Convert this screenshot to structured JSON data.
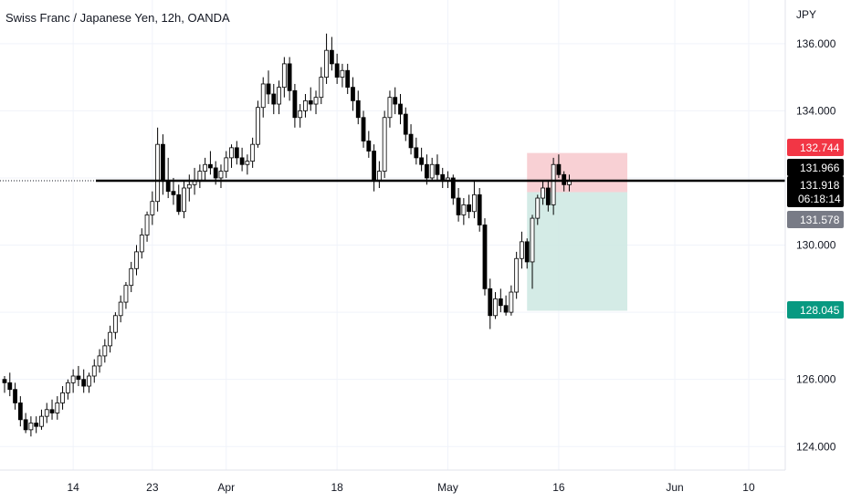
{
  "chart_data": {
    "type": "candlestick",
    "title": "Swiss Franc / Japanese Yen, 12h, OANDA",
    "ylabel": "JPY",
    "ylim": [
      123.3,
      137.3
    ],
    "y_ticks": [
      124,
      126,
      128,
      130,
      132,
      134,
      136
    ],
    "y_tick_labels": [
      "124.000",
      "126.000",
      "128.000",
      "130.000",
      "132.000",
      "134.000",
      "136.000"
    ],
    "x_tick_labels": [
      "14",
      "23",
      "Apr",
      "18",
      "May",
      "16",
      "Jun",
      "10"
    ],
    "x_tick_bar_index": [
      13,
      28,
      42,
      63,
      84,
      105,
      127,
      141
    ],
    "grid": true,
    "candles": [
      [
        126.0,
        126.1,
        125.6,
        125.9
      ],
      [
        125.9,
        126.2,
        125.5,
        125.7
      ],
      [
        125.7,
        125.9,
        125.1,
        125.3
      ],
      [
        125.3,
        125.5,
        124.6,
        124.8
      ],
      [
        124.8,
        125.0,
        124.4,
        124.5
      ],
      [
        124.5,
        124.9,
        124.3,
        124.7
      ],
      [
        124.7,
        124.9,
        124.4,
        124.6
      ],
      [
        124.6,
        125.1,
        124.5,
        124.9
      ],
      [
        124.9,
        125.3,
        124.7,
        125.1
      ],
      [
        125.1,
        125.4,
        124.8,
        125.0
      ],
      [
        125.0,
        125.5,
        124.8,
        125.3
      ],
      [
        125.3,
        125.8,
        125.1,
        125.6
      ],
      [
        125.6,
        126.0,
        125.4,
        125.9
      ],
      [
        125.9,
        126.3,
        125.6,
        126.1
      ],
      [
        126.1,
        126.4,
        125.8,
        126.0
      ],
      [
        126.0,
        126.3,
        125.6,
        125.8
      ],
      [
        125.8,
        126.2,
        125.6,
        126.1
      ],
      [
        126.1,
        126.6,
        125.9,
        126.4
      ],
      [
        126.4,
        126.9,
        126.2,
        126.7
      ],
      [
        126.7,
        127.2,
        126.5,
        127.0
      ],
      [
        127.0,
        127.6,
        126.8,
        127.4
      ],
      [
        127.4,
        128.0,
        127.2,
        127.9
      ],
      [
        127.9,
        128.5,
        127.7,
        128.3
      ],
      [
        128.3,
        128.9,
        128.1,
        128.8
      ],
      [
        128.8,
        129.5,
        128.6,
        129.3
      ],
      [
        129.3,
        130.0,
        129.1,
        129.8
      ],
      [
        129.8,
        130.5,
        129.6,
        130.3
      ],
      [
        130.3,
        131.0,
        130.1,
        130.9
      ],
      [
        130.9,
        131.6,
        130.6,
        131.3
      ],
      [
        131.3,
        133.5,
        131.0,
        133.0
      ],
      [
        133.0,
        133.3,
        131.5,
        131.9
      ],
      [
        131.9,
        132.6,
        131.4,
        131.6
      ],
      [
        131.6,
        132.0,
        131.2,
        131.5
      ],
      [
        131.5,
        131.8,
        130.9,
        131.0
      ],
      [
        131.0,
        131.9,
        130.8,
        131.7
      ],
      [
        131.7,
        132.1,
        131.3,
        131.8
      ],
      [
        131.8,
        132.3,
        131.5,
        131.9
      ],
      [
        131.9,
        132.4,
        131.7,
        132.2
      ],
      [
        132.2,
        132.6,
        131.9,
        132.4
      ],
      [
        132.4,
        132.8,
        132.1,
        132.3
      ],
      [
        132.3,
        132.5,
        131.8,
        132.0
      ],
      [
        132.0,
        132.4,
        131.7,
        132.2
      ],
      [
        132.2,
        132.8,
        132.0,
        132.6
      ],
      [
        132.6,
        133.0,
        132.3,
        132.9
      ],
      [
        132.9,
        133.1,
        132.4,
        132.6
      ],
      [
        132.6,
        132.9,
        132.2,
        132.4
      ],
      [
        132.4,
        132.7,
        132.1,
        132.5
      ],
      [
        132.5,
        133.2,
        132.3,
        133.0
      ],
      [
        133.0,
        134.3,
        132.9,
        134.1
      ],
      [
        134.1,
        135.0,
        133.8,
        134.8
      ],
      [
        134.8,
        135.2,
        134.2,
        134.5
      ],
      [
        134.5,
        134.8,
        133.9,
        134.2
      ],
      [
        134.2,
        134.9,
        133.9,
        134.7
      ],
      [
        134.7,
        135.6,
        134.4,
        135.4
      ],
      [
        135.4,
        135.6,
        134.3,
        134.6
      ],
      [
        134.6,
        134.8,
        133.5,
        133.8
      ],
      [
        133.8,
        134.2,
        133.5,
        134.0
      ],
      [
        134.0,
        134.5,
        133.8,
        134.3
      ],
      [
        134.3,
        134.7,
        134.0,
        134.2
      ],
      [
        134.2,
        134.6,
        133.9,
        134.4
      ],
      [
        134.4,
        135.3,
        134.2,
        135.0
      ],
      [
        135.0,
        136.3,
        134.8,
        135.8
      ],
      [
        135.8,
        136.2,
        135.2,
        135.4
      ],
      [
        135.4,
        135.7,
        134.8,
        135.0
      ],
      [
        135.0,
        135.4,
        134.7,
        135.2
      ],
      [
        135.2,
        135.4,
        134.5,
        134.7
      ],
      [
        134.7,
        135.0,
        134.0,
        134.3
      ],
      [
        134.3,
        134.6,
        133.6,
        133.8
      ],
      [
        133.8,
        134.0,
        132.9,
        133.1
      ],
      [
        133.1,
        133.4,
        132.6,
        132.8
      ],
      [
        132.8,
        133.0,
        131.6,
        131.9
      ],
      [
        131.9,
        132.5,
        131.7,
        132.2
      ],
      [
        132.2,
        134.0,
        132.0,
        133.8
      ],
      [
        133.8,
        134.6,
        133.5,
        134.4
      ],
      [
        134.4,
        134.7,
        133.9,
        134.2
      ],
      [
        134.2,
        134.5,
        133.6,
        133.9
      ],
      [
        133.9,
        134.1,
        133.1,
        133.3
      ],
      [
        133.3,
        133.6,
        132.7,
        132.9
      ],
      [
        132.9,
        133.2,
        132.4,
        132.6
      ],
      [
        132.6,
        132.9,
        132.2,
        132.4
      ],
      [
        132.4,
        132.7,
        131.8,
        132.0
      ],
      [
        132.0,
        132.6,
        131.9,
        132.4
      ],
      [
        132.4,
        132.7,
        131.9,
        132.1
      ],
      [
        132.1,
        132.3,
        131.7,
        131.9
      ],
      [
        131.9,
        132.2,
        131.7,
        132.0
      ],
      [
        132.0,
        132.1,
        131.2,
        131.4
      ],
      [
        131.4,
        131.7,
        130.7,
        130.9
      ],
      [
        130.9,
        131.4,
        130.6,
        131.2
      ],
      [
        131.2,
        131.5,
        130.8,
        131.0
      ],
      [
        131.0,
        131.9,
        130.8,
        131.5
      ],
      [
        131.5,
        131.7,
        130.4,
        130.6
      ],
      [
        130.6,
        130.8,
        128.5,
        128.7
      ],
      [
        128.7,
        129.0,
        127.5,
        127.9
      ],
      [
        127.9,
        128.6,
        127.8,
        128.4
      ],
      [
        128.4,
        128.7,
        128.0,
        128.2
      ],
      [
        128.2,
        128.5,
        127.9,
        128.0
      ],
      [
        128.0,
        128.8,
        127.9,
        128.6
      ],
      [
        128.6,
        129.8,
        128.4,
        129.6
      ],
      [
        129.6,
        130.4,
        129.3,
        130.1
      ],
      [
        130.1,
        130.2,
        129.3,
        129.5
      ],
      [
        129.5,
        130.9,
        128.7,
        130.8
      ],
      [
        130.8,
        131.5,
        130.6,
        131.4
      ],
      [
        131.4,
        131.9,
        131.2,
        131.7
      ],
      [
        131.7,
        131.9,
        131.0,
        131.2
      ],
      [
        131.2,
        132.6,
        130.9,
        132.4
      ],
      [
        132.4,
        132.7,
        132.0,
        132.1
      ],
      [
        132.1,
        132.2,
        131.6,
        131.8
      ],
      [
        131.8,
        132.1,
        131.6,
        131.9
      ]
    ],
    "annotations": {
      "horizontal_line": 131.918,
      "risk_zone": {
        "top": 132.744,
        "bottom": 131.578
      },
      "reward_zone": {
        "top": 131.578,
        "bottom": 128.045
      },
      "zone_bar_start": 99,
      "zone_bar_end": 118
    },
    "price_tags": [
      {
        "value": 132.744,
        "label": "132.744",
        "color": "#f23645"
      },
      {
        "value": 131.966,
        "label": "131.966",
        "color": "#000000"
      },
      {
        "value": 131.918,
        "label": "131.918",
        "sublabel": "06:18:14",
        "color": "#000000"
      },
      {
        "value": 131.578,
        "label": "131.578",
        "color": "#787b86"
      },
      {
        "value": 128.045,
        "label": "128.045",
        "color": "#089981"
      }
    ],
    "colors": {
      "candle_up_fill": "#ffffff",
      "candle_down_fill": "#000000",
      "candle_border": "#000000",
      "risk_zone_fill": "#f7c8cc",
      "reward_zone_fill": "#cde8e2"
    }
  }
}
